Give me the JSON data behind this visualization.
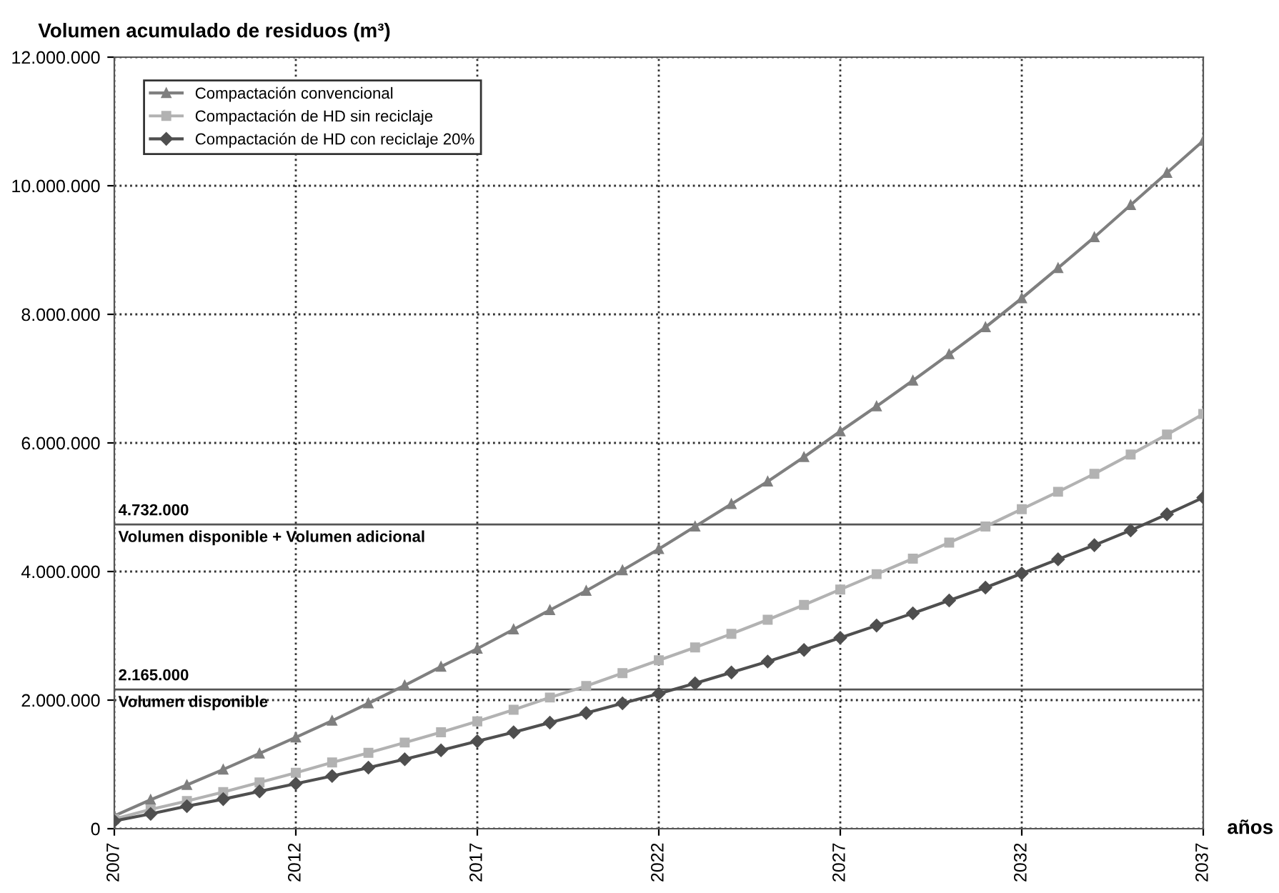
{
  "chart_data": {
    "type": "line",
    "title": "Volumen acumulado de residuos (m³)",
    "xlabel": "años",
    "x": [
      2007,
      2008,
      2009,
      2010,
      2011,
      2012,
      2013,
      2014,
      2015,
      2016,
      2017,
      2018,
      2019,
      2020,
      2021,
      2022,
      2023,
      2024,
      2025,
      2026,
      2027,
      2028,
      2029,
      2030,
      2031,
      2032,
      2033,
      2034,
      2035,
      2036,
      2037
    ],
    "series": [
      {
        "name": "Compactación convencional",
        "color": "#7f7f7f",
        "marker": "triangle",
        "values": [
          200000,
          450000,
          680000,
          920000,
          1170000,
          1420000,
          1680000,
          1950000,
          2230000,
          2520000,
          2800000,
          3100000,
          3400000,
          3700000,
          4020000,
          4350000,
          4700000,
          5050000,
          5400000,
          5780000,
          6180000,
          6570000,
          6970000,
          7380000,
          7800000,
          8250000,
          8720000,
          9200000,
          9700000,
          10200000,
          10700000
        ]
      },
      {
        "name": "Compactación de HD sin reciclaje",
        "color": "#b2b2b2",
        "marker": "square",
        "values": [
          150000,
          300000,
          430000,
          570000,
          720000,
          870000,
          1030000,
          1180000,
          1340000,
          1500000,
          1670000,
          1850000,
          2040000,
          2220000,
          2420000,
          2620000,
          2820000,
          3030000,
          3250000,
          3480000,
          3720000,
          3960000,
          4200000,
          4450000,
          4700000,
          4970000,
          5240000,
          5520000,
          5820000,
          6130000,
          6450000
        ]
      },
      {
        "name": "Compactación de HD con reciclaje 20%",
        "color": "#4f4f4f",
        "marker": "diamond",
        "values": [
          120000,
          230000,
          350000,
          460000,
          580000,
          700000,
          820000,
          950000,
          1080000,
          1220000,
          1360000,
          1500000,
          1650000,
          1800000,
          1950000,
          2100000,
          2260000,
          2430000,
          2600000,
          2780000,
          2970000,
          3160000,
          3350000,
          3550000,
          3750000,
          3970000,
          4190000,
          4410000,
          4640000,
          4890000,
          5150000
        ]
      }
    ],
    "xlim": [
      2007,
      2037
    ],
    "xticks": [
      2007,
      2012,
      2017,
      2022,
      2027,
      2032,
      2037
    ],
    "ylim": [
      0,
      12000000
    ],
    "yticks": [
      {
        "value": 0,
        "label": "0"
      },
      {
        "value": 2000000,
        "label": "2.000.000"
      },
      {
        "value": 4000000,
        "label": "4.000.000"
      },
      {
        "value": 6000000,
        "label": "6.000.000"
      },
      {
        "value": 8000000,
        "label": "8.000.000"
      },
      {
        "value": 10000000,
        "label": "10.000.000"
      },
      {
        "value": 12000000,
        "label": "12.000.000"
      }
    ],
    "ref_lines": [
      {
        "axis": "y",
        "value": 4732000,
        "label": "Volumen disponible + Volumen adicional",
        "color": "#555555"
      },
      {
        "axis": "y",
        "value": 2165000,
        "label": "Volumen disponible",
        "color": "#555555"
      }
    ],
    "annotations": [
      {
        "text": "4.732.000",
        "x": 2007,
        "y": 4732000
      },
      {
        "text": "2.165.000",
        "x": 2007,
        "y": 2165000
      }
    ],
    "grid": true,
    "legend": "top left",
    "line_style": "solid"
  }
}
